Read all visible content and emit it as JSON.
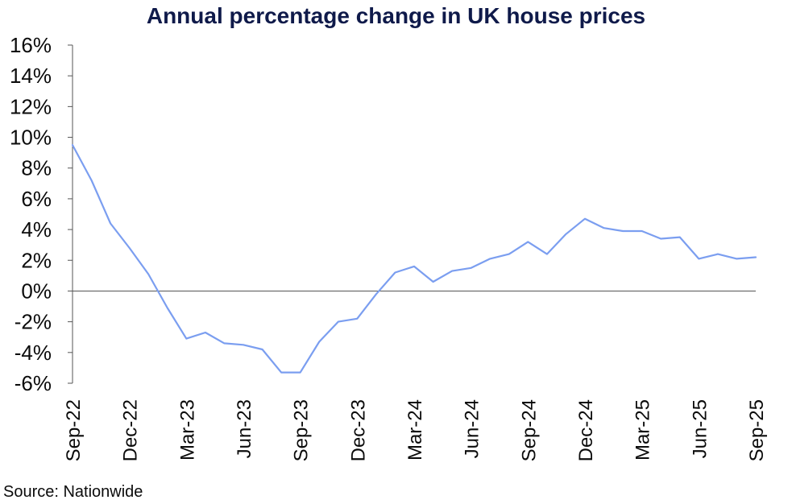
{
  "chart_data": {
    "type": "line",
    "title": "Annual percentage change in UK house prices",
    "source": "Source: Nationwide",
    "xlabel": "",
    "ylabel": "",
    "ylim": [
      -6,
      16
    ],
    "y_ticks": [
      "16%",
      "14%",
      "12%",
      "10%",
      "8%",
      "6%",
      "4%",
      "2%",
      "0%",
      "-2%",
      "-4%",
      "-6%"
    ],
    "x_ticks": [
      "Sep-22",
      "Dec-22",
      "Mar-23",
      "Jun-23",
      "Sep-23",
      "Dec-23",
      "Mar-24",
      "Jun-24",
      "Sep-24",
      "Dec-24",
      "Mar-25",
      "Jun-25",
      "Sep-25"
    ],
    "grid": false,
    "legend": "none",
    "line_color": "#7b9ef0",
    "axis_color": "#555555",
    "title_color": "#0f1a4a",
    "x": [
      "Sep-22",
      "Oct-22",
      "Nov-22",
      "Dec-22",
      "Jan-23",
      "Feb-23",
      "Mar-23",
      "Apr-23",
      "May-23",
      "Jun-23",
      "Jul-23",
      "Aug-23",
      "Sep-23",
      "Oct-23",
      "Nov-23",
      "Dec-23",
      "Jan-24",
      "Feb-24",
      "Mar-24",
      "Apr-24",
      "May-24",
      "Jun-24",
      "Jul-24",
      "Aug-24",
      "Sep-24",
      "Oct-24",
      "Nov-24",
      "Dec-24",
      "Jan-25",
      "Feb-25",
      "Mar-25",
      "Apr-25",
      "May-25",
      "Jun-25",
      "Jul-25",
      "Aug-25",
      "Sep-25"
    ],
    "series": [
      {
        "values": [
          9.5,
          7.2,
          4.4,
          2.8,
          1.1,
          -1.1,
          -3.1,
          -2.7,
          -3.4,
          -3.5,
          -3.8,
          -5.3,
          -5.3,
          -3.3,
          -2.0,
          -1.8,
          -0.2,
          1.2,
          1.6,
          0.6,
          1.3,
          1.5,
          2.1,
          2.4,
          3.2,
          2.4,
          3.7,
          4.7,
          4.1,
          3.9,
          3.9,
          3.4,
          3.5,
          2.1,
          2.4,
          2.1,
          2.2
        ]
      }
    ]
  }
}
